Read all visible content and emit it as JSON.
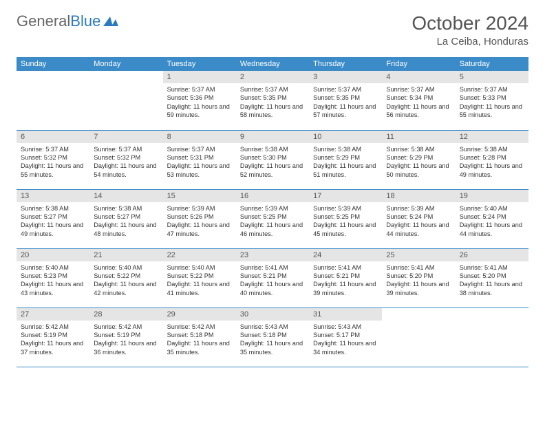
{
  "logo": {
    "text1": "General",
    "text2": "Blue"
  },
  "title": "October 2024",
  "location": "La Ceiba, Honduras",
  "colors": {
    "header_bg": "#3b8bc9",
    "header_text": "#ffffff",
    "daynum_bg": "#e5e5e5",
    "border": "#3b8bc9",
    "logo_gray": "#666666",
    "logo_blue": "#2b7bbf"
  },
  "weekdays": [
    "Sunday",
    "Monday",
    "Tuesday",
    "Wednesday",
    "Thursday",
    "Friday",
    "Saturday"
  ],
  "weeks": [
    [
      null,
      null,
      {
        "n": "1",
        "sr": "5:37 AM",
        "ss": "5:36 PM",
        "dl": "11 hours and 59 minutes."
      },
      {
        "n": "2",
        "sr": "5:37 AM",
        "ss": "5:35 PM",
        "dl": "11 hours and 58 minutes."
      },
      {
        "n": "3",
        "sr": "5:37 AM",
        "ss": "5:35 PM",
        "dl": "11 hours and 57 minutes."
      },
      {
        "n": "4",
        "sr": "5:37 AM",
        "ss": "5:34 PM",
        "dl": "11 hours and 56 minutes."
      },
      {
        "n": "5",
        "sr": "5:37 AM",
        "ss": "5:33 PM",
        "dl": "11 hours and 55 minutes."
      }
    ],
    [
      {
        "n": "6",
        "sr": "5:37 AM",
        "ss": "5:32 PM",
        "dl": "11 hours and 55 minutes."
      },
      {
        "n": "7",
        "sr": "5:37 AM",
        "ss": "5:32 PM",
        "dl": "11 hours and 54 minutes."
      },
      {
        "n": "8",
        "sr": "5:37 AM",
        "ss": "5:31 PM",
        "dl": "11 hours and 53 minutes."
      },
      {
        "n": "9",
        "sr": "5:38 AM",
        "ss": "5:30 PM",
        "dl": "11 hours and 52 minutes."
      },
      {
        "n": "10",
        "sr": "5:38 AM",
        "ss": "5:29 PM",
        "dl": "11 hours and 51 minutes."
      },
      {
        "n": "11",
        "sr": "5:38 AM",
        "ss": "5:29 PM",
        "dl": "11 hours and 50 minutes."
      },
      {
        "n": "12",
        "sr": "5:38 AM",
        "ss": "5:28 PM",
        "dl": "11 hours and 49 minutes."
      }
    ],
    [
      {
        "n": "13",
        "sr": "5:38 AM",
        "ss": "5:27 PM",
        "dl": "11 hours and 49 minutes."
      },
      {
        "n": "14",
        "sr": "5:38 AM",
        "ss": "5:27 PM",
        "dl": "11 hours and 48 minutes."
      },
      {
        "n": "15",
        "sr": "5:39 AM",
        "ss": "5:26 PM",
        "dl": "11 hours and 47 minutes."
      },
      {
        "n": "16",
        "sr": "5:39 AM",
        "ss": "5:25 PM",
        "dl": "11 hours and 46 minutes."
      },
      {
        "n": "17",
        "sr": "5:39 AM",
        "ss": "5:25 PM",
        "dl": "11 hours and 45 minutes."
      },
      {
        "n": "18",
        "sr": "5:39 AM",
        "ss": "5:24 PM",
        "dl": "11 hours and 44 minutes."
      },
      {
        "n": "19",
        "sr": "5:40 AM",
        "ss": "5:24 PM",
        "dl": "11 hours and 44 minutes."
      }
    ],
    [
      {
        "n": "20",
        "sr": "5:40 AM",
        "ss": "5:23 PM",
        "dl": "11 hours and 43 minutes."
      },
      {
        "n": "21",
        "sr": "5:40 AM",
        "ss": "5:22 PM",
        "dl": "11 hours and 42 minutes."
      },
      {
        "n": "22",
        "sr": "5:40 AM",
        "ss": "5:22 PM",
        "dl": "11 hours and 41 minutes."
      },
      {
        "n": "23",
        "sr": "5:41 AM",
        "ss": "5:21 PM",
        "dl": "11 hours and 40 minutes."
      },
      {
        "n": "24",
        "sr": "5:41 AM",
        "ss": "5:21 PM",
        "dl": "11 hours and 39 minutes."
      },
      {
        "n": "25",
        "sr": "5:41 AM",
        "ss": "5:20 PM",
        "dl": "11 hours and 39 minutes."
      },
      {
        "n": "26",
        "sr": "5:41 AM",
        "ss": "5:20 PM",
        "dl": "11 hours and 38 minutes."
      }
    ],
    [
      {
        "n": "27",
        "sr": "5:42 AM",
        "ss": "5:19 PM",
        "dl": "11 hours and 37 minutes."
      },
      {
        "n": "28",
        "sr": "5:42 AM",
        "ss": "5:19 PM",
        "dl": "11 hours and 36 minutes."
      },
      {
        "n": "29",
        "sr": "5:42 AM",
        "ss": "5:18 PM",
        "dl": "11 hours and 35 minutes."
      },
      {
        "n": "30",
        "sr": "5:43 AM",
        "ss": "5:18 PM",
        "dl": "11 hours and 35 minutes."
      },
      {
        "n": "31",
        "sr": "5:43 AM",
        "ss": "5:17 PM",
        "dl": "11 hours and 34 minutes."
      },
      null,
      null
    ]
  ],
  "labels": {
    "sunrise": "Sunrise:",
    "sunset": "Sunset:",
    "daylight": "Daylight:"
  }
}
